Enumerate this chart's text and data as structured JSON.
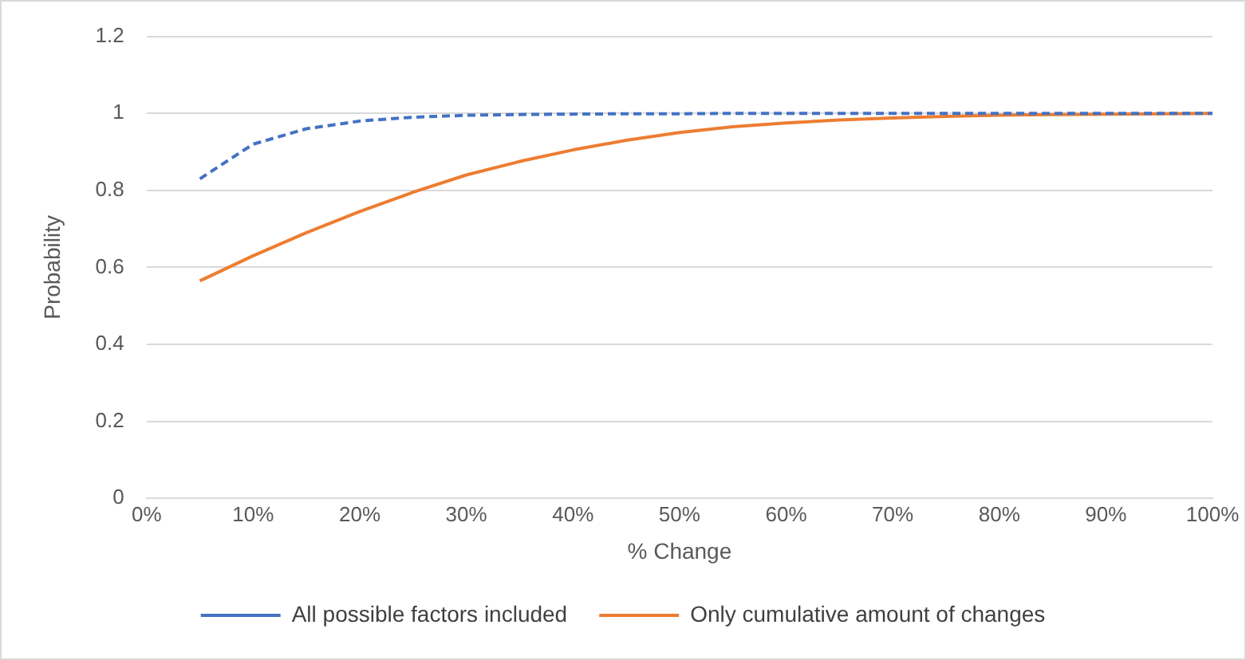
{
  "chart_data": {
    "type": "line",
    "xlabel": "% Change",
    "ylabel": "Probability",
    "xlim": [
      0,
      100
    ],
    "xticks": [
      {
        "value": 0,
        "label": "0%"
      },
      {
        "value": 10,
        "label": "10%"
      },
      {
        "value": 20,
        "label": "20%"
      },
      {
        "value": 30,
        "label": "30%"
      },
      {
        "value": 40,
        "label": "40%"
      },
      {
        "value": 50,
        "label": "50%"
      },
      {
        "value": 60,
        "label": "60%"
      },
      {
        "value": 70,
        "label": "70%"
      },
      {
        "value": 80,
        "label": "80%"
      },
      {
        "value": 90,
        "label": "90%"
      },
      {
        "value": 100,
        "label": "100%"
      }
    ],
    "ylim": [
      0,
      1.2
    ],
    "yticks": [
      0,
      0.2,
      0.4,
      0.6,
      0.8,
      1,
      1.2
    ],
    "x": [
      5,
      10,
      15,
      20,
      25,
      30,
      35,
      40,
      45,
      50,
      55,
      60,
      65,
      70,
      75,
      80,
      85,
      90,
      95,
      100
    ],
    "series": [
      {
        "name": "All possible factors included",
        "color": "#4472c4",
        "line_style": "dashed",
        "values": [
          0.83,
          0.92,
          0.96,
          0.98,
          0.99,
          0.995,
          0.997,
          0.998,
          0.999,
          0.999,
          1,
          1,
          1,
          1,
          1,
          1,
          1,
          1,
          1,
          1
        ]
      },
      {
        "name": "Only cumulative amount of changes",
        "color": "#ed7d31",
        "line_style": "solid",
        "values": [
          0.565,
          0.63,
          0.69,
          0.745,
          0.795,
          0.84,
          0.875,
          0.905,
          0.93,
          0.95,
          0.965,
          0.975,
          0.983,
          0.988,
          0.992,
          0.995,
          0.997,
          0.998,
          0.999,
          1
        ]
      }
    ],
    "grid": "y",
    "legend": "bottom",
    "marker": "none"
  }
}
